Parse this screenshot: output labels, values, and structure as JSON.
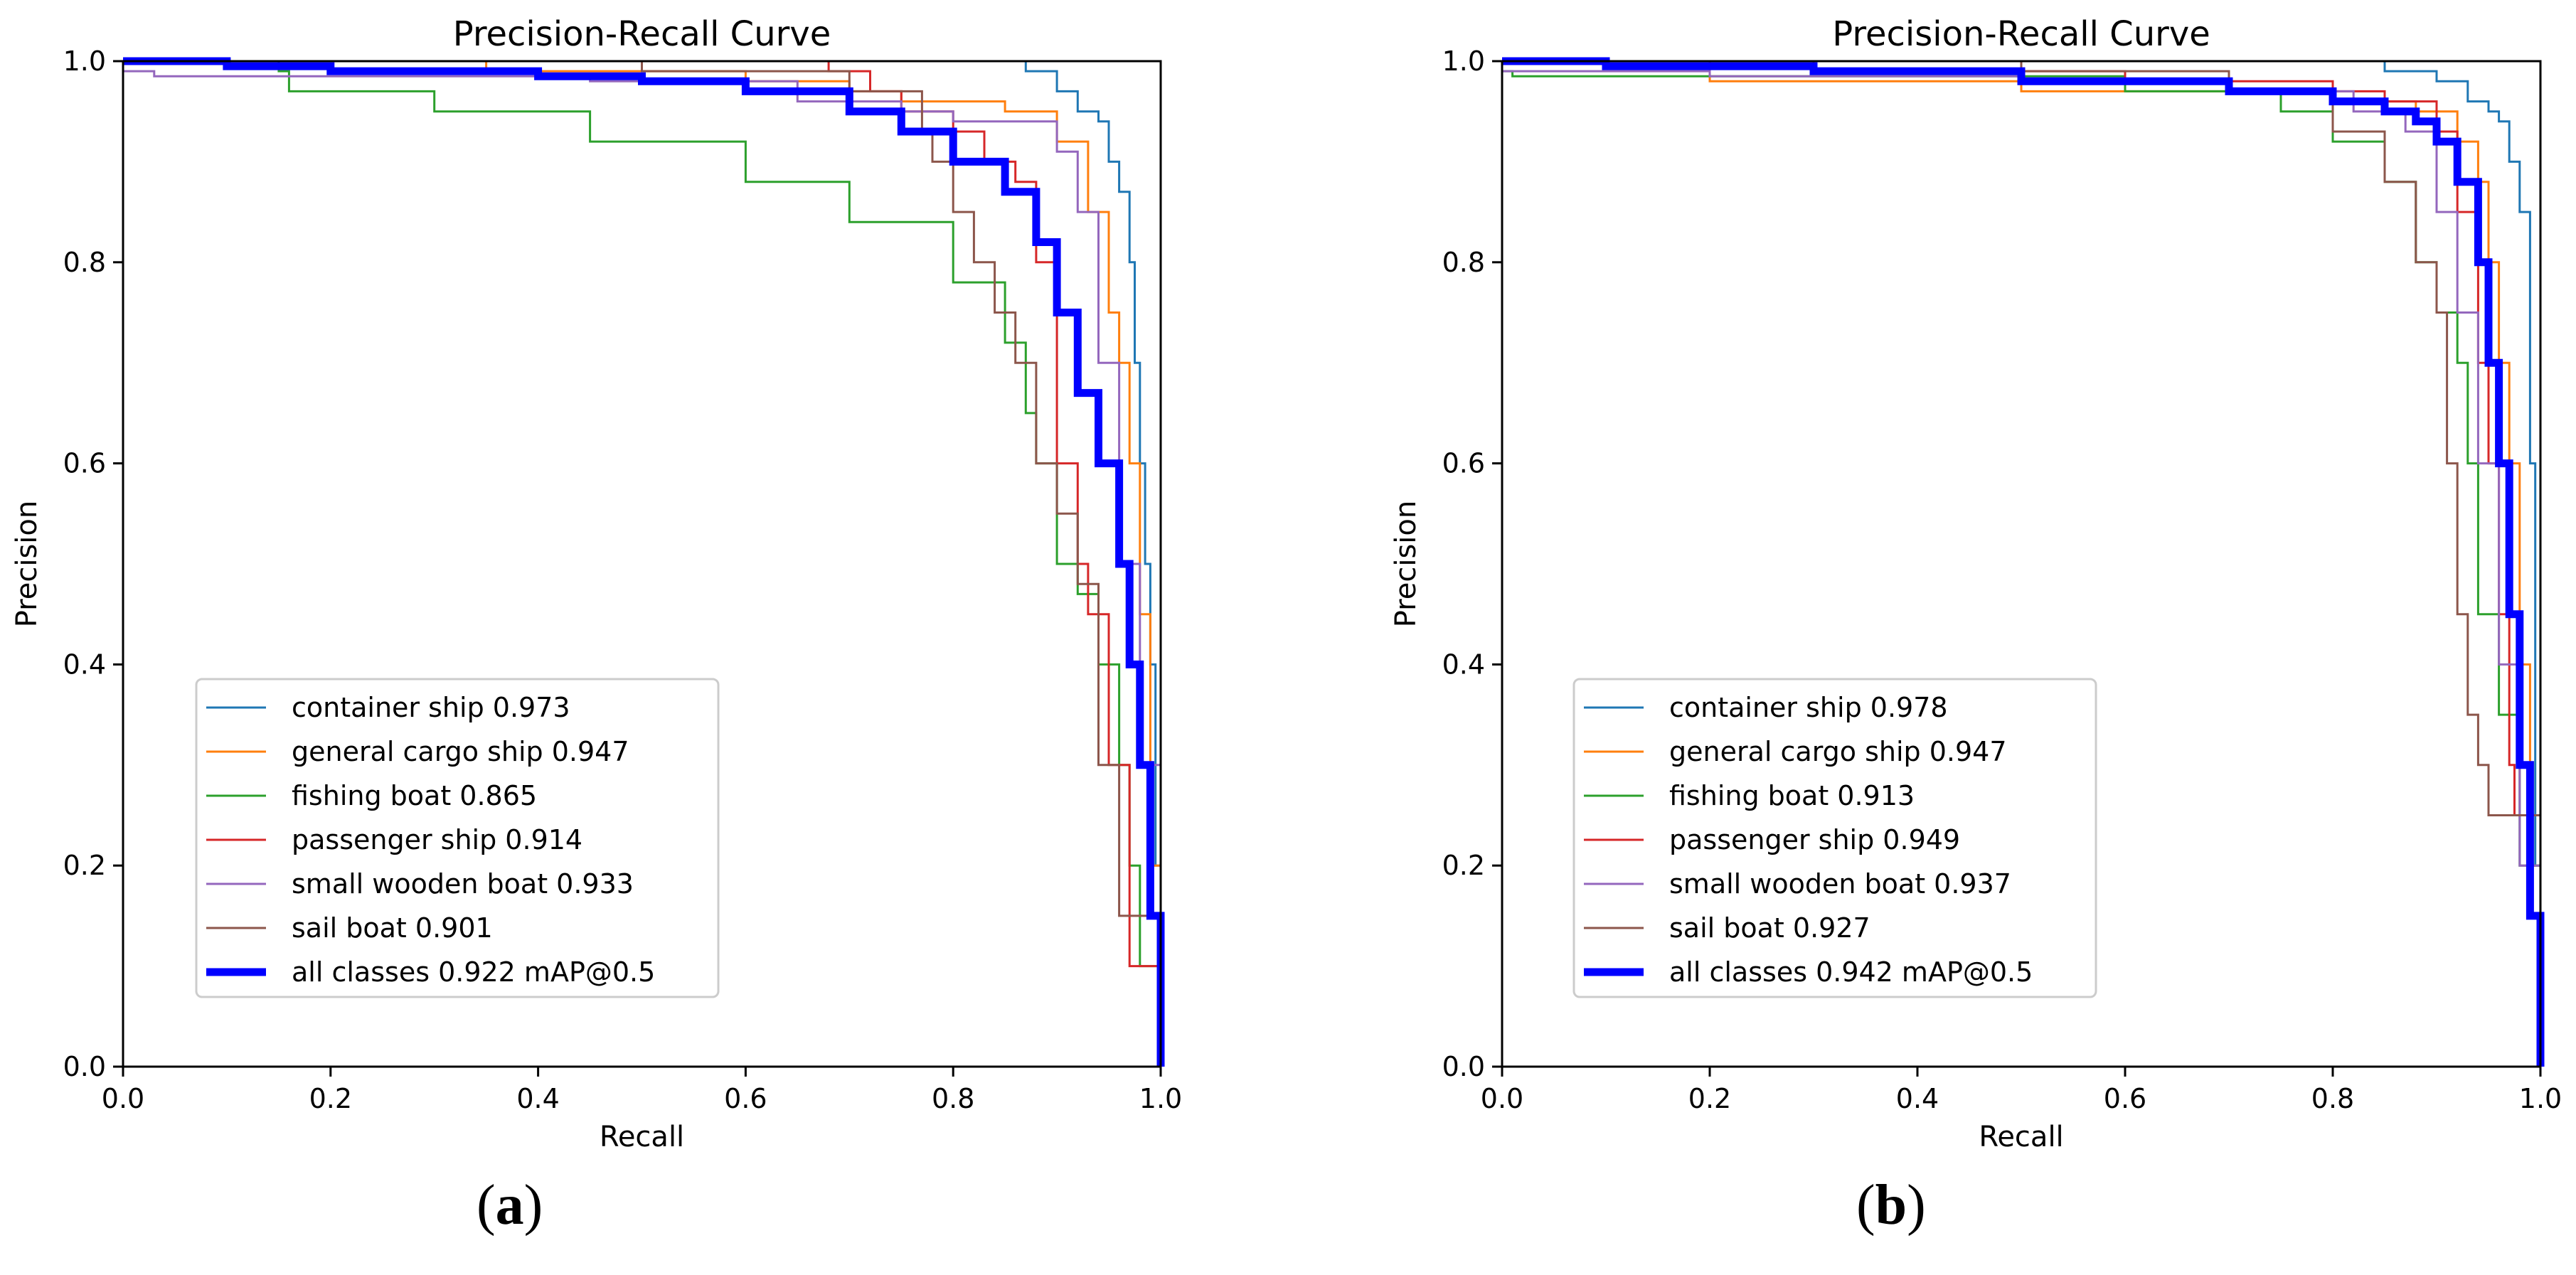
{
  "figure": {
    "captions": [
      {
        "open": "(",
        "letter": "a",
        "close": ")"
      },
      {
        "open": "(",
        "letter": "b",
        "close": ")"
      }
    ]
  },
  "chart_data": [
    {
      "type": "line",
      "title": "Precision-Recall Curve",
      "xlabel": "Recall",
      "ylabel": "Precision",
      "xlim": [
        0,
        1
      ],
      "ylim": [
        0,
        1
      ],
      "xticks": [
        "0.0",
        "0.2",
        "0.4",
        "0.6",
        "0.8",
        "1.0"
      ],
      "yticks": [
        "0.0",
        "0.2",
        "0.4",
        "0.6",
        "0.8",
        "1.0"
      ],
      "legend_position": "lower-left",
      "series": [
        {
          "name": "container ship 0.973",
          "color": "#1f77b4",
          "bold": false,
          "x": [
            0,
            0.15,
            0.4,
            0.6,
            0.75,
            0.86,
            0.87,
            0.9,
            0.92,
            0.94,
            0.95,
            0.96,
            0.965,
            0.97,
            0.975,
            0.98,
            0.985,
            0.99,
            0.995,
            1.0
          ],
          "y": [
            1.0,
            1.0,
            1.0,
            1.0,
            1.0,
            1.0,
            0.99,
            0.97,
            0.95,
            0.94,
            0.9,
            0.87,
            0.87,
            0.8,
            0.7,
            0.6,
            0.5,
            0.4,
            0.2,
            0.0
          ]
        },
        {
          "name": "general cargo ship 0.947",
          "color": "#ff7f0e",
          "bold": false,
          "x": [
            0,
            0.2,
            0.35,
            0.6,
            0.7,
            0.75,
            0.8,
            0.85,
            0.9,
            0.93,
            0.95,
            0.96,
            0.97,
            0.98,
            0.99,
            1.0
          ],
          "y": [
            1.0,
            1.0,
            0.99,
            0.98,
            0.97,
            0.96,
            0.96,
            0.95,
            0.92,
            0.85,
            0.75,
            0.7,
            0.6,
            0.45,
            0.2,
            0.0
          ]
        },
        {
          "name": "fishing boat 0.865",
          "color": "#2ca02c",
          "bold": false,
          "x": [
            0,
            0.15,
            0.16,
            0.3,
            0.45,
            0.6,
            0.7,
            0.8,
            0.85,
            0.87,
            0.88,
            0.9,
            0.92,
            0.94,
            0.96,
            0.97,
            0.98,
            1.0
          ],
          "y": [
            1.0,
            0.99,
            0.97,
            0.95,
            0.92,
            0.88,
            0.84,
            0.78,
            0.72,
            0.65,
            0.6,
            0.5,
            0.47,
            0.4,
            0.3,
            0.2,
            0.1,
            0.0
          ]
        },
        {
          "name": "passenger ship 0.914",
          "color": "#d62728",
          "bold": false,
          "x": [
            0,
            0.3,
            0.55,
            0.68,
            0.72,
            0.75,
            0.8,
            0.83,
            0.86,
            0.88,
            0.9,
            0.92,
            0.93,
            0.95,
            0.97,
            1.0
          ],
          "y": [
            1.0,
            1.0,
            1.0,
            0.99,
            0.97,
            0.95,
            0.93,
            0.9,
            0.88,
            0.8,
            0.6,
            0.5,
            0.45,
            0.3,
            0.1,
            0.0
          ]
        },
        {
          "name": "small wooden boat 0.933",
          "color": "#9467bd",
          "bold": false,
          "x": [
            0,
            0.03,
            0.2,
            0.45,
            0.65,
            0.75,
            0.8,
            0.85,
            0.9,
            0.92,
            0.94,
            0.96,
            0.98,
            1.0
          ],
          "y": [
            0.99,
            0.985,
            0.985,
            0.98,
            0.96,
            0.95,
            0.94,
            0.94,
            0.91,
            0.85,
            0.7,
            0.5,
            0.3,
            0.0
          ]
        },
        {
          "name": "sail boat 0.901",
          "color": "#8c564b",
          "bold": false,
          "x": [
            0,
            0.5,
            0.7,
            0.77,
            0.78,
            0.8,
            0.82,
            0.84,
            0.86,
            0.88,
            0.9,
            0.92,
            0.94,
            0.96,
            1.0
          ],
          "y": [
            1.0,
            0.99,
            0.97,
            0.93,
            0.9,
            0.85,
            0.8,
            0.75,
            0.7,
            0.6,
            0.55,
            0.48,
            0.3,
            0.15,
            0.0
          ]
        },
        {
          "name": "all classes 0.922 mAP@0.5",
          "color": "#0000ff",
          "bold": true,
          "x": [
            0,
            0.1,
            0.2,
            0.3,
            0.4,
            0.5,
            0.6,
            0.7,
            0.75,
            0.8,
            0.85,
            0.88,
            0.9,
            0.92,
            0.94,
            0.96,
            0.97,
            0.98,
            0.99,
            1.0
          ],
          "y": [
            1.0,
            0.995,
            0.99,
            0.99,
            0.985,
            0.98,
            0.97,
            0.95,
            0.93,
            0.9,
            0.87,
            0.82,
            0.75,
            0.67,
            0.6,
            0.5,
            0.4,
            0.3,
            0.15,
            0.0
          ]
        }
      ]
    },
    {
      "type": "line",
      "title": "Precision-Recall Curve",
      "xlabel": "Recall",
      "ylabel": "Precision",
      "xlim": [
        0,
        1
      ],
      "ylim": [
        0,
        1
      ],
      "xticks": [
        "0.0",
        "0.2",
        "0.4",
        "0.6",
        "0.8",
        "1.0"
      ],
      "yticks": [
        "0.0",
        "0.2",
        "0.4",
        "0.6",
        "0.8",
        "1.0"
      ],
      "legend_position": "lower-left",
      "series": [
        {
          "name": "container ship 0.978",
          "color": "#1f77b4",
          "bold": false,
          "x": [
            0,
            0.3,
            0.6,
            0.75,
            0.85,
            0.9,
            0.93,
            0.95,
            0.96,
            0.97,
            0.98,
            0.99,
            0.995,
            1.0
          ],
          "y": [
            1.0,
            1.0,
            1.0,
            1.0,
            0.99,
            0.98,
            0.96,
            0.95,
            0.94,
            0.9,
            0.85,
            0.6,
            0.2,
            0.0
          ]
        },
        {
          "name": "general cargo ship 0.947",
          "color": "#ff7f0e",
          "bold": false,
          "x": [
            0,
            0.2,
            0.5,
            0.7,
            0.8,
            0.88,
            0.92,
            0.94,
            0.95,
            0.96,
            0.97,
            0.98,
            0.99,
            1.0
          ],
          "y": [
            1.0,
            0.98,
            0.97,
            0.97,
            0.96,
            0.95,
            0.92,
            0.88,
            0.8,
            0.7,
            0.6,
            0.4,
            0.2,
            0.0
          ]
        },
        {
          "name": "fishing boat 0.913",
          "color": "#2ca02c",
          "bold": false,
          "x": [
            0,
            0.01,
            0.3,
            0.6,
            0.75,
            0.8,
            0.85,
            0.88,
            0.9,
            0.92,
            0.93,
            0.94,
            0.96,
            0.98,
            1.0
          ],
          "y": [
            0.99,
            0.985,
            0.985,
            0.97,
            0.95,
            0.92,
            0.88,
            0.8,
            0.75,
            0.7,
            0.6,
            0.45,
            0.35,
            0.2,
            0.0
          ]
        },
        {
          "name": "passenger ship 0.949",
          "color": "#d62728",
          "bold": false,
          "x": [
            0,
            0.3,
            0.6,
            0.8,
            0.85,
            0.9,
            0.92,
            0.94,
            0.95,
            0.96,
            0.97,
            0.975,
            1.0
          ],
          "y": [
            1.0,
            0.99,
            0.98,
            0.97,
            0.96,
            0.93,
            0.85,
            0.7,
            0.6,
            0.45,
            0.3,
            0.25,
            0.0
          ]
        },
        {
          "name": "small wooden boat 0.937",
          "color": "#9467bd",
          "bold": false,
          "x": [
            0,
            0.2,
            0.5,
            0.7,
            0.82,
            0.87,
            0.9,
            0.92,
            0.94,
            0.96,
            0.98,
            1.0
          ],
          "y": [
            0.99,
            0.985,
            0.98,
            0.97,
            0.95,
            0.93,
            0.85,
            0.75,
            0.6,
            0.4,
            0.2,
            0.0
          ]
        },
        {
          "name": "sail boat 0.927",
          "color": "#8c564b",
          "bold": false,
          "x": [
            0,
            0.5,
            0.7,
            0.8,
            0.85,
            0.88,
            0.9,
            0.91,
            0.92,
            0.93,
            0.94,
            0.95,
            1.0
          ],
          "y": [
            1.0,
            0.99,
            0.97,
            0.93,
            0.88,
            0.8,
            0.75,
            0.6,
            0.45,
            0.35,
            0.3,
            0.25,
            0.0
          ]
        },
        {
          "name": "all classes 0.942 mAP@0.5",
          "color": "#0000ff",
          "bold": true,
          "x": [
            0,
            0.1,
            0.3,
            0.5,
            0.7,
            0.8,
            0.85,
            0.88,
            0.9,
            0.92,
            0.94,
            0.95,
            0.96,
            0.97,
            0.98,
            0.99,
            1.0
          ],
          "y": [
            1.0,
            0.995,
            0.99,
            0.98,
            0.97,
            0.96,
            0.95,
            0.94,
            0.92,
            0.88,
            0.8,
            0.7,
            0.6,
            0.45,
            0.3,
            0.15,
            0.0
          ]
        }
      ]
    }
  ]
}
